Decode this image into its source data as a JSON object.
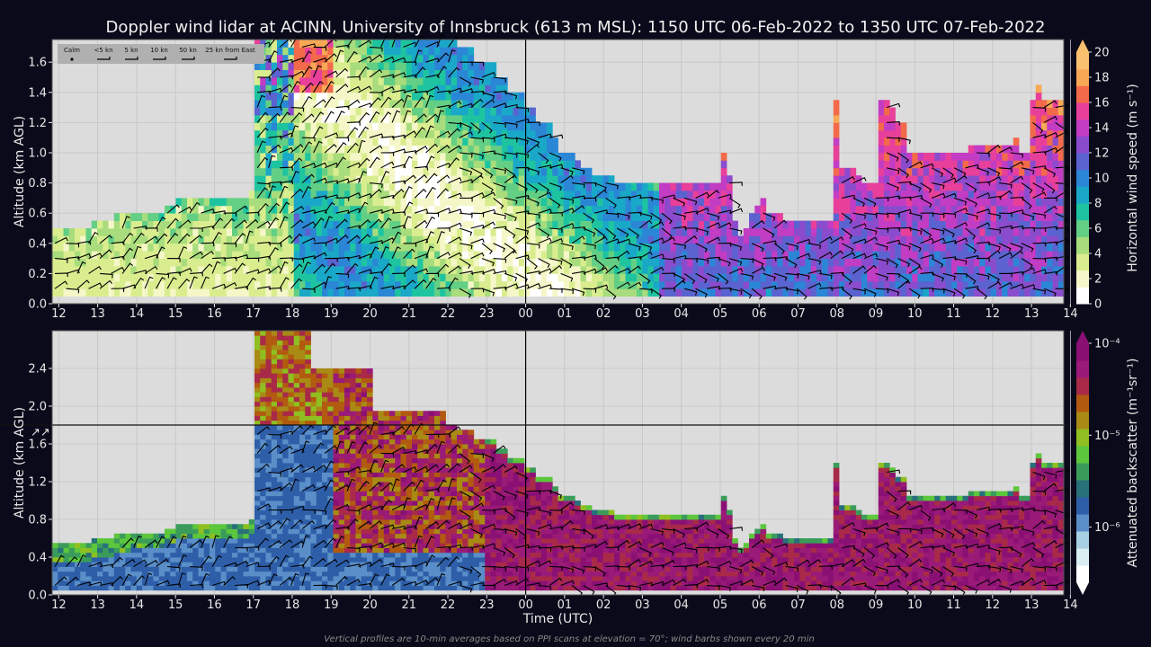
{
  "title": "Doppler wind lidar at ACINN, University of Innsbruck (613 m MSL): 1150 UTC 06-Feb-2022 to 1350 UTC 07-Feb-2022",
  "footnote": "Vertical profiles are 10-min averages based on PPI scans at elevation = 70°; wind barbs shown every 20 min",
  "colors": {
    "background": "#0a0a1a",
    "plot_background": "#dcdcdc",
    "grid": "#c4c4c4"
  },
  "chart_data": [
    {
      "type": "heatmap",
      "name": "wind-speed-panel",
      "ylabel": "Altitude (km AGL)",
      "xlabel": "",
      "x_ticks": [
        "12",
        "13",
        "14",
        "15",
        "16",
        "17",
        "18",
        "19",
        "20",
        "21",
        "22",
        "23",
        "00",
        "01",
        "02",
        "03",
        "04",
        "05",
        "06",
        "07",
        "08",
        "09",
        "10",
        "11",
        "12",
        "13",
        "14"
      ],
      "xlim_hours": [
        11.83,
        37.83
      ],
      "ylim": [
        0,
        1.75
      ],
      "y_ticks": [
        "0.0",
        "0.2",
        "0.4",
        "0.6",
        "0.8",
        "1.0",
        "1.2",
        "1.4",
        "1.6"
      ],
      "y_tick_values": [
        0,
        0.2,
        0.4,
        0.6,
        0.8,
        1.0,
        1.2,
        1.4,
        1.6
      ],
      "midnight_marker_hours": 24,
      "grid": true,
      "colorbar": {
        "label": "Horizontal wind speed (m s⁻¹)",
        "ticks": [
          "0",
          "2",
          "4",
          "6",
          "8",
          "10",
          "12",
          "14",
          "16",
          "18",
          "20"
        ],
        "colors": [
          "#ffffff",
          "#f5f7c8",
          "#d9ed8f",
          "#a8dc7c",
          "#63cf84",
          "#1ec4a0",
          "#1aa8c8",
          "#2b86d6",
          "#5a63d0",
          "#8a4ccc",
          "#c23cc4",
          "#e8409a",
          "#f26a4a",
          "#f7a855",
          "#f9c070"
        ],
        "range": [
          0,
          20
        ],
        "extend": "max"
      },
      "legend": {
        "placement": "top-left",
        "labels": [
          "Calm",
          "<5 kn",
          "5 kn",
          "10 kn",
          "50 kn",
          "25 kn from East"
        ]
      },
      "profile_top_km": [
        0.45,
        0.45,
        0.45,
        0.45,
        0.45,
        0.45,
        0.45,
        0.5,
        0.5,
        0.5,
        0.5,
        0.55,
        0.55,
        0.55,
        0.6,
        0.6,
        0.6,
        0.6,
        0.6,
        0.6,
        0.65,
        0.65,
        0.7,
        0.7,
        0.7,
        0.7,
        0.7,
        0.7,
        0.7,
        0.7,
        0.7,
        0.7,
        0.7,
        0.7,
        0.7,
        0.75,
        1.75,
        1.75,
        1.75,
        1.75,
        1.75,
        1.75,
        1.75,
        1.75,
        1.75,
        1.75,
        1.75,
        1.75,
        1.75,
        1.75,
        1.75,
        1.75,
        1.75,
        1.75,
        1.75,
        1.75,
        1.75,
        1.75,
        1.75,
        1.75,
        1.75,
        1.75,
        1.75,
        1.75,
        1.75,
        1.75,
        1.75,
        1.75,
        1.75,
        1.75,
        1.75,
        1.75,
        1.7,
        1.7,
        1.7,
        1.6,
        1.6,
        1.6,
        1.6,
        1.5,
        1.5,
        1.4,
        1.4,
        1.4,
        1.3,
        1.3,
        1.2,
        1.2,
        1.2,
        1.1,
        1.0,
        1.0,
        1.0,
        0.95,
        0.9,
        0.9,
        0.85,
        0.85,
        0.85,
        0.85,
        0.8,
        0.8,
        0.8,
        0.8,
        0.8,
        0.8,
        0.8,
        0.8,
        0.8,
        0.8,
        0.8,
        0.8,
        0.8,
        0.8,
        0.8,
        0.8,
        0.8,
        0.8,
        0.8,
        1.0,
        0.85,
        0.5,
        0.4,
        0.45,
        0.55,
        0.65,
        0.7,
        0.6,
        0.6,
        0.55,
        0.5,
        0.5,
        0.5,
        0.5,
        0.5,
        0.5,
        0.5,
        0.5,
        0.5,
        1.35,
        0.9,
        0.9,
        0.9,
        0.85,
        0.8,
        0.8,
        0.8,
        1.35,
        1.35,
        1.3,
        1.2,
        1.2,
        1.0,
        1.0,
        1.0,
        1.0,
        1.0,
        1.0,
        1.0,
        1.0,
        1.0,
        1.0,
        1.0,
        1.05,
        1.05,
        1.05,
        1.05,
        1.05,
        1.05,
        1.05,
        1.05,
        1.1,
        1.0,
        1.0,
        1.35,
        1.45,
        1.35,
        1.35,
        1.35,
        1.35
      ],
      "profile_bottom_km": [
        0.05,
        0.05,
        0.05,
        0.05,
        0.05,
        0.05,
        0.05,
        0.05,
        0.05,
        0.05,
        0.05,
        0.05,
        0.05,
        0.05,
        0.05,
        0.05,
        0.05,
        0.05,
        0.05,
        0.05,
        0.05,
        0.05,
        0.05,
        0.05,
        0.05,
        0.05,
        0.05,
        0.05,
        0.05,
        0.05,
        0.05,
        0.05,
        0.05,
        0.05,
        0.05,
        0.05,
        0.05,
        0.05,
        0.05,
        0.05,
        0.05,
        0.05,
        0.05,
        0.05,
        0.05,
        0.05,
        0.05,
        0.05,
        0.05,
        0.05,
        0.05,
        0.05,
        0.05,
        0.05,
        0.05,
        0.05,
        0.05,
        0.05,
        0.05,
        0.05,
        0.05,
        0.05,
        0.05,
        0.05,
        0.05,
        0.05,
        0.05,
        0.05,
        0.05,
        0.05,
        0.05,
        0.05,
        0.05,
        0.05,
        0.05,
        0.05,
        0.05,
        0.05,
        0.05,
        0.05,
        0.05,
        0.05,
        0.05,
        0.05,
        0.05,
        0.05,
        0.05,
        0.05,
        0.05,
        0.05,
        0.05,
        0.05,
        0.05,
        0.05,
        0.05,
        0.05,
        0.05,
        0.05,
        0.05,
        0.05,
        0.05,
        0.05,
        0.05,
        0.05,
        0.05,
        0.05,
        0.05,
        0.05,
        0.05,
        0.05,
        0.05,
        0.05,
        0.05,
        0.05,
        0.05,
        0.05,
        0.05,
        0.05,
        0.05,
        0.05,
        0.05,
        0.05,
        0.05,
        0.05,
        0.05,
        0.05,
        0.05,
        0.05,
        0.05,
        0.05,
        0.05,
        0.05,
        0.05,
        0.05,
        0.05,
        0.05,
        0.05,
        0.05,
        0.05,
        0.05,
        0.05,
        0.05,
        0.05,
        0.05,
        0.05,
        0.05,
        0.05,
        0.05,
        0.05,
        0.05,
        0.05,
        0.05,
        0.05,
        0.05,
        0.05,
        0.05,
        0.05,
        0.05,
        0.05,
        0.05,
        0.05,
        0.05,
        0.05,
        0.05,
        0.05,
        0.05,
        0.05,
        0.05,
        0.05,
        0.05,
        0.05,
        0.05,
        0.05,
        0.05,
        0.05,
        0.05,
        0.05,
        0.05,
        0.05,
        0.05,
        0.05,
        0.05,
        0.05,
        0.05
      ]
    },
    {
      "type": "heatmap",
      "name": "backscatter-panel",
      "ylabel": "Altitude (km AGL)",
      "xlabel": "Time (UTC)",
      "x_ticks": [
        "12",
        "13",
        "14",
        "15",
        "16",
        "17",
        "18",
        "19",
        "20",
        "21",
        "22",
        "23",
        "00",
        "01",
        "02",
        "03",
        "04",
        "05",
        "06",
        "07",
        "08",
        "09",
        "10",
        "11",
        "12",
        "13",
        "14"
      ],
      "xlim_hours": [
        11.83,
        37.83
      ],
      "ylim": [
        0,
        2.8
      ],
      "axis_break_km": 1.8,
      "y_ticks": [
        "0.0",
        "0.4",
        "0.8",
        "1.2",
        "1.6",
        "2.0",
        "2.4"
      ],
      "y_tick_values": [
        0,
        0.4,
        0.8,
        1.2,
        1.6,
        2.0,
        2.4
      ],
      "midnight_marker_hours": 24,
      "grid": true,
      "colorbar": {
        "label": "Attenuated backscatter (m⁻¹sr⁻¹)",
        "ticks": [
          "10⁻⁶",
          "10⁻⁵",
          "10⁻⁴"
        ],
        "tick_values_log10": [
          -6,
          -5,
          -4
        ],
        "range_log10": [
          -6.6,
          -4
        ],
        "colors": [
          "#ffffff",
          "#d8eef2",
          "#a8d0e4",
          "#5a8ec8",
          "#2e5ea8",
          "#28707a",
          "#3a9c5a",
          "#5cc63c",
          "#8fbf20",
          "#a88a14",
          "#b25a10",
          "#a82a48",
          "#9a1a78",
          "#8a1074"
        ],
        "extend": "both"
      }
    }
  ]
}
